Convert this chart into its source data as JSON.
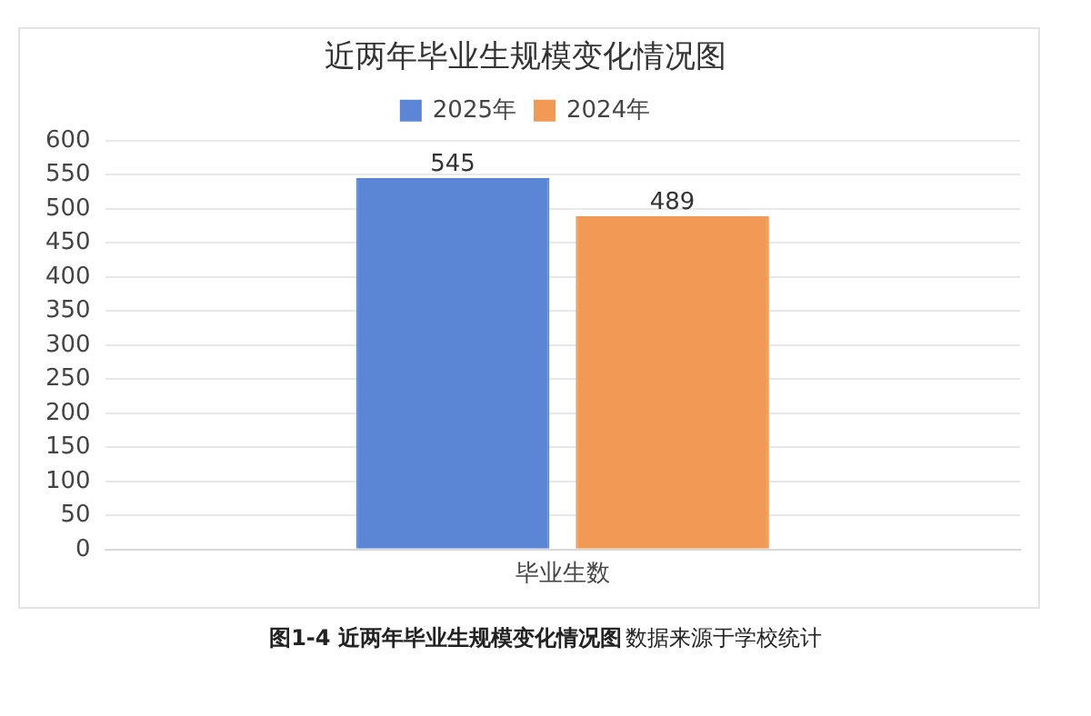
{
  "chart_data": {
    "type": "bar",
    "title": "近两年毕业生规模变化情况图",
    "categories": [
      "毕业生数"
    ],
    "series": [
      {
        "name": "2025年",
        "color": "#5b86d6",
        "values": [
          545
        ]
      },
      {
        "name": "2024年",
        "color": "#f09a55",
        "values": [
          489
        ]
      }
    ],
    "ylim": [
      0,
      600
    ],
    "yticks": [
      0,
      50,
      100,
      150,
      200,
      250,
      300,
      350,
      400,
      450,
      500,
      550,
      600
    ],
    "grid": "y",
    "legend": "top",
    "data_labels": true,
    "annotations": [
      "图1-4  近两年毕业生规模变化情况图",
      "数据来源于学校统计"
    ]
  }
}
